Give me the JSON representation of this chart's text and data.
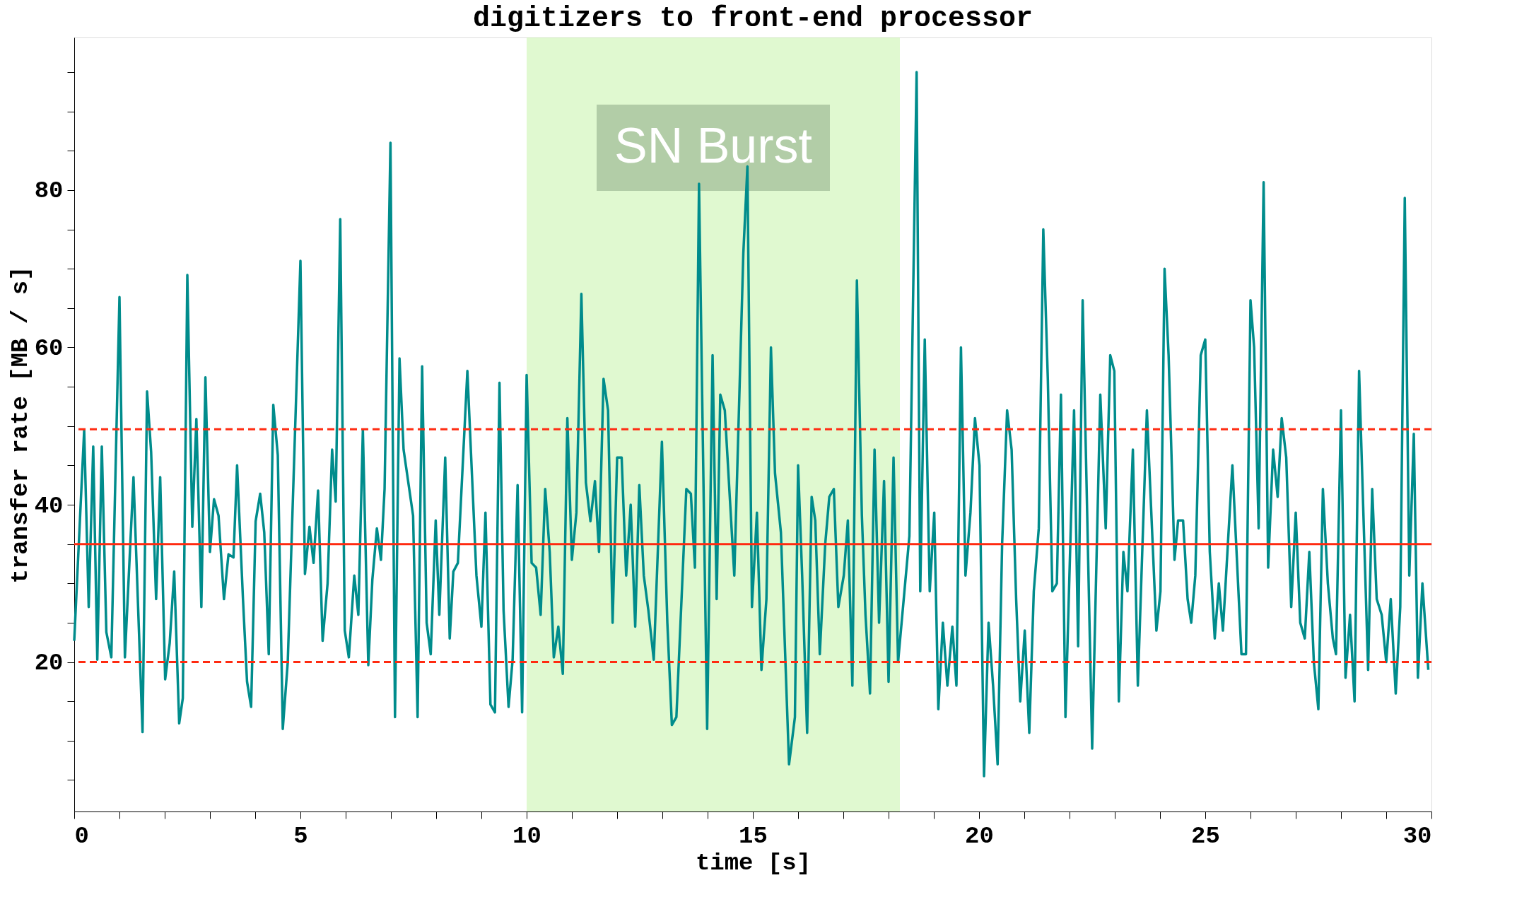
{
  "chart_data": {
    "type": "line",
    "title": "digitizers to front-end processor",
    "xlabel": "time [s]",
    "ylabel": "transfer rate [MB / s]",
    "x": [
      0,
      0.22,
      0.32,
      0.42,
      0.51,
      0.61,
      0.71,
      0.82,
      1.0,
      1.12,
      1.31,
      1.51,
      1.61,
      1.7,
      1.81,
      1.9,
      2.01,
      2.11,
      2.21,
      2.32,
      2.4,
      2.5,
      2.61,
      2.7,
      2.81,
      2.9,
      3.0,
      3.09,
      3.19,
      3.31,
      3.41,
      3.52,
      3.6,
      3.73,
      3.82,
      3.91,
      4.01,
      4.11,
      4.2,
      4.3,
      4.4,
      4.5,
      4.61,
      4.72,
      5.0,
      5.1,
      5.2,
      5.29,
      5.39,
      5.49,
      5.6,
      5.7,
      5.78,
      5.88,
      5.98,
      6.07,
      6.19,
      6.28,
      6.38,
      6.5,
      6.59,
      6.69,
      6.78,
      6.86,
      6.99,
      7.09,
      7.19,
      7.28,
      7.49,
      7.59,
      7.69,
      7.79,
      7.88,
      7.99,
      8.07,
      8.2,
      8.3,
      8.38,
      8.48,
      8.69,
      8.79,
      8.89,
      9.0,
      9.09,
      9.2,
      9.3,
      9.4,
      9.49,
      9.6,
      9.69,
      9.8,
      9.9,
      10.0,
      10.11,
      10.21,
      10.31,
      10.41,
      10.51,
      10.6,
      10.7,
      10.8,
      10.9,
      11.0,
      11.1,
      11.21,
      11.31,
      11.41,
      11.51,
      11.6,
      11.7,
      11.8,
      11.9,
      12.0,
      12.1,
      12.2,
      12.3,
      12.4,
      12.49,
      12.59,
      12.69,
      12.81,
      12.99,
      13.11,
      13.21,
      13.31,
      13.53,
      13.63,
      13.72,
      13.81,
      13.99,
      14.11,
      14.2,
      14.28,
      14.38,
      14.59,
      14.79,
      14.88,
      14.98,
      15.09,
      15.19,
      15.3,
      15.4,
      15.49,
      15.62,
      15.8,
      15.93,
      16.0,
      16.09,
      16.2,
      16.3,
      16.38,
      16.48,
      16.6,
      16.69,
      16.79,
      16.89,
      17.01,
      17.1,
      17.2,
      17.3,
      17.41,
      17.49,
      17.59,
      17.69,
      17.79,
      17.9,
      18.0,
      18.11,
      18.21,
      18.46,
      18.62,
      18.7,
      18.8,
      18.91,
      19.01,
      19.1,
      19.2,
      19.3,
      19.41,
      19.5,
      19.6,
      19.7,
      19.81,
      19.91,
      20.01,
      20.11,
      20.21,
      20.31,
      20.41,
      20.51,
      20.62,
      20.72,
      20.82,
      20.91,
      21.01,
      21.11,
      21.21,
      21.32,
      21.42,
      21.52,
      21.62,
      21.72,
      21.81,
      21.91,
      22.1,
      22.19,
      22.29,
      22.5,
      22.68,
      22.8,
      22.9,
      22.99,
      23.09,
      23.19,
      23.28,
      23.4,
      23.51,
      23.71,
      23.92,
      24.01,
      24.1,
      24.19,
      24.32,
      24.4,
      24.51,
      24.61,
      24.69,
      24.78,
      24.9,
      25.0,
      25.1,
      25.21,
      25.3,
      25.39,
      25.6,
      25.8,
      25.9,
      26.0,
      26.08,
      26.18,
      26.29,
      26.39,
      26.5,
      26.6,
      26.69,
      26.79,
      26.9,
      27.0,
      27.1,
      27.2,
      27.3,
      27.4,
      27.5,
      27.6,
      27.71,
      27.82,
      27.89,
      28.0,
      28.1,
      28.2,
      28.3,
      28.4,
      28.6,
      28.69,
      28.79,
      28.9,
      29.0,
      29.1,
      29.21,
      29.31,
      29.41,
      29.51,
      29.61,
      29.7,
      29.8,
      29.93
    ],
    "series": [
      {
        "color": "#008c8c",
        "values": [
          22.7,
          49.5,
          27,
          47.4,
          20.3,
          47.4,
          23.8,
          20.6,
          66.4,
          20.6,
          43.5,
          11.1,
          54.4,
          46.7,
          28,
          43.5,
          17.8,
          22.4,
          31.5,
          12.2,
          15.4,
          69.2,
          37.2,
          50.9,
          27,
          56.2,
          34,
          40.7,
          38.6,
          28,
          33.7,
          33.3,
          45,
          28,
          17.5,
          14.3,
          37.9,
          41.4,
          36.5,
          21,
          52.7,
          46.3,
          11.5,
          20,
          71,
          31.2,
          37.2,
          32.6,
          41.8,
          22.7,
          30,
          47,
          40.4,
          76.3,
          24,
          20.6,
          31,
          26,
          49.5,
          19.6,
          30.5,
          37,
          33,
          42,
          86,
          13,
          58.6,
          47,
          38.6,
          13,
          57.6,
          25,
          21,
          38,
          26,
          46,
          23,
          31.5,
          32.6,
          57,
          44,
          31,
          24.5,
          39,
          14.6,
          13.6,
          55.5,
          26.6,
          14.3,
          20.3,
          42.5,
          13.6,
          56.5,
          32.6,
          32,
          26,
          42,
          34,
          20.6,
          24.5,
          18.5,
          51,
          33,
          39,
          66.8,
          42.8,
          37.9,
          43,
          34,
          56,
          52,
          25,
          46,
          46,
          31,
          40,
          24.5,
          42.5,
          31,
          26.6,
          20.3,
          48,
          25,
          12,
          13,
          42,
          41.4,
          32,
          80.8,
          11.5,
          59,
          28,
          54,
          52,
          31,
          72,
          83,
          27,
          39,
          19,
          28,
          60,
          44,
          36.5,
          7,
          13,
          45,
          31,
          11,
          41,
          38,
          21,
          35,
          41,
          42,
          27,
          31,
          38,
          17,
          68.5,
          38.6,
          26,
          16,
          47,
          25,
          43,
          17.5,
          46,
          20,
          36,
          95,
          29,
          61,
          29,
          39,
          14,
          25,
          17,
          24.5,
          17,
          60,
          31,
          39,
          51,
          45,
          5.5,
          25,
          17,
          7,
          35,
          52,
          47,
          28,
          15,
          24,
          11,
          29,
          37,
          75,
          56,
          29,
          30,
          54,
          13,
          52,
          22,
          66,
          9,
          54,
          37,
          59,
          57,
          15,
          34,
          29,
          47,
          17,
          52,
          24,
          29,
          70,
          59,
          33,
          38,
          38,
          28,
          25,
          31,
          59,
          61,
          34,
          23,
          30,
          24,
          45,
          21,
          21,
          66,
          60,
          37,
          81,
          32,
          47,
          41,
          51,
          46,
          27,
          39,
          25,
          23,
          34,
          20,
          14,
          42,
          30,
          23,
          21,
          52,
          18,
          26,
          15,
          57,
          19,
          42,
          28,
          26,
          20,
          28,
          16,
          27,
          79,
          31,
          49,
          18,
          30,
          19
        ]
      }
    ],
    "xlim": [
      0,
      30
    ],
    "ylim": [
      1,
      99.4
    ],
    "xticks": [
      0,
      {
        "value": 1,
        "label": null
      },
      {
        "value": 2,
        "label": null
      },
      {
        "value": 3,
        "label": null
      },
      {
        "value": 4,
        "label": null
      },
      5,
      {
        "value": 6,
        "label": null
      },
      {
        "value": 7,
        "label": null
      },
      {
        "value": 8,
        "label": null
      },
      {
        "value": 9,
        "label": null
      },
      10,
      {
        "value": 11,
        "label": null
      },
      {
        "value": 12,
        "label": null
      },
      {
        "value": 13,
        "label": null
      },
      {
        "value": 14,
        "label": null
      },
      15,
      {
        "value": 16,
        "label": null
      },
      {
        "value": 17,
        "label": null
      },
      {
        "value": 18,
        "label": null
      },
      {
        "value": 19,
        "label": null
      },
      20,
      {
        "value": 21,
        "label": null
      },
      {
        "value": 22,
        "label": null
      },
      {
        "value": 23,
        "label": null
      },
      {
        "value": 24,
        "label": null
      },
      25,
      {
        "value": 26,
        "label": null
      },
      {
        "value": 27,
        "label": null
      },
      {
        "value": 28,
        "label": null
      },
      {
        "value": 29,
        "label": null
      },
      30
    ],
    "yticks": [
      {
        "value": 5,
        "label": null
      },
      {
        "value": 10,
        "label": null
      },
      {
        "value": 15,
        "label": null
      },
      20,
      {
        "value": 25,
        "label": null
      },
      {
        "value": 30,
        "label": null
      },
      {
        "value": 35,
        "label": null
      },
      40,
      {
        "value": 45,
        "label": null
      },
      {
        "value": 50,
        "label": null
      },
      {
        "value": 55,
        "label": null
      },
      60,
      {
        "value": 65,
        "label": null
      },
      {
        "value": 70,
        "label": null
      },
      {
        "value": 75,
        "label": null
      },
      80,
      {
        "value": 85,
        "label": null
      },
      {
        "value": 90,
        "label": null
      },
      {
        "value": 95,
        "label": null
      }
    ],
    "ref_lines": [
      {
        "axis": "y",
        "value": 35,
        "color": "#ff2a10",
        "line_style": "solid"
      },
      {
        "axis": "y",
        "value": 49.6,
        "color": "#ff2a10",
        "line_style": "dashed"
      },
      {
        "axis": "y",
        "value": 20,
        "color": "#ff2a10",
        "line_style": "dashed"
      }
    ],
    "bands": [
      {
        "axis": "x",
        "from": 10,
        "to": 18.25,
        "label": "SN Burst",
        "color": "#c2f3a2"
      }
    ],
    "grid": false,
    "marker": "none",
    "line_style": "solid"
  }
}
